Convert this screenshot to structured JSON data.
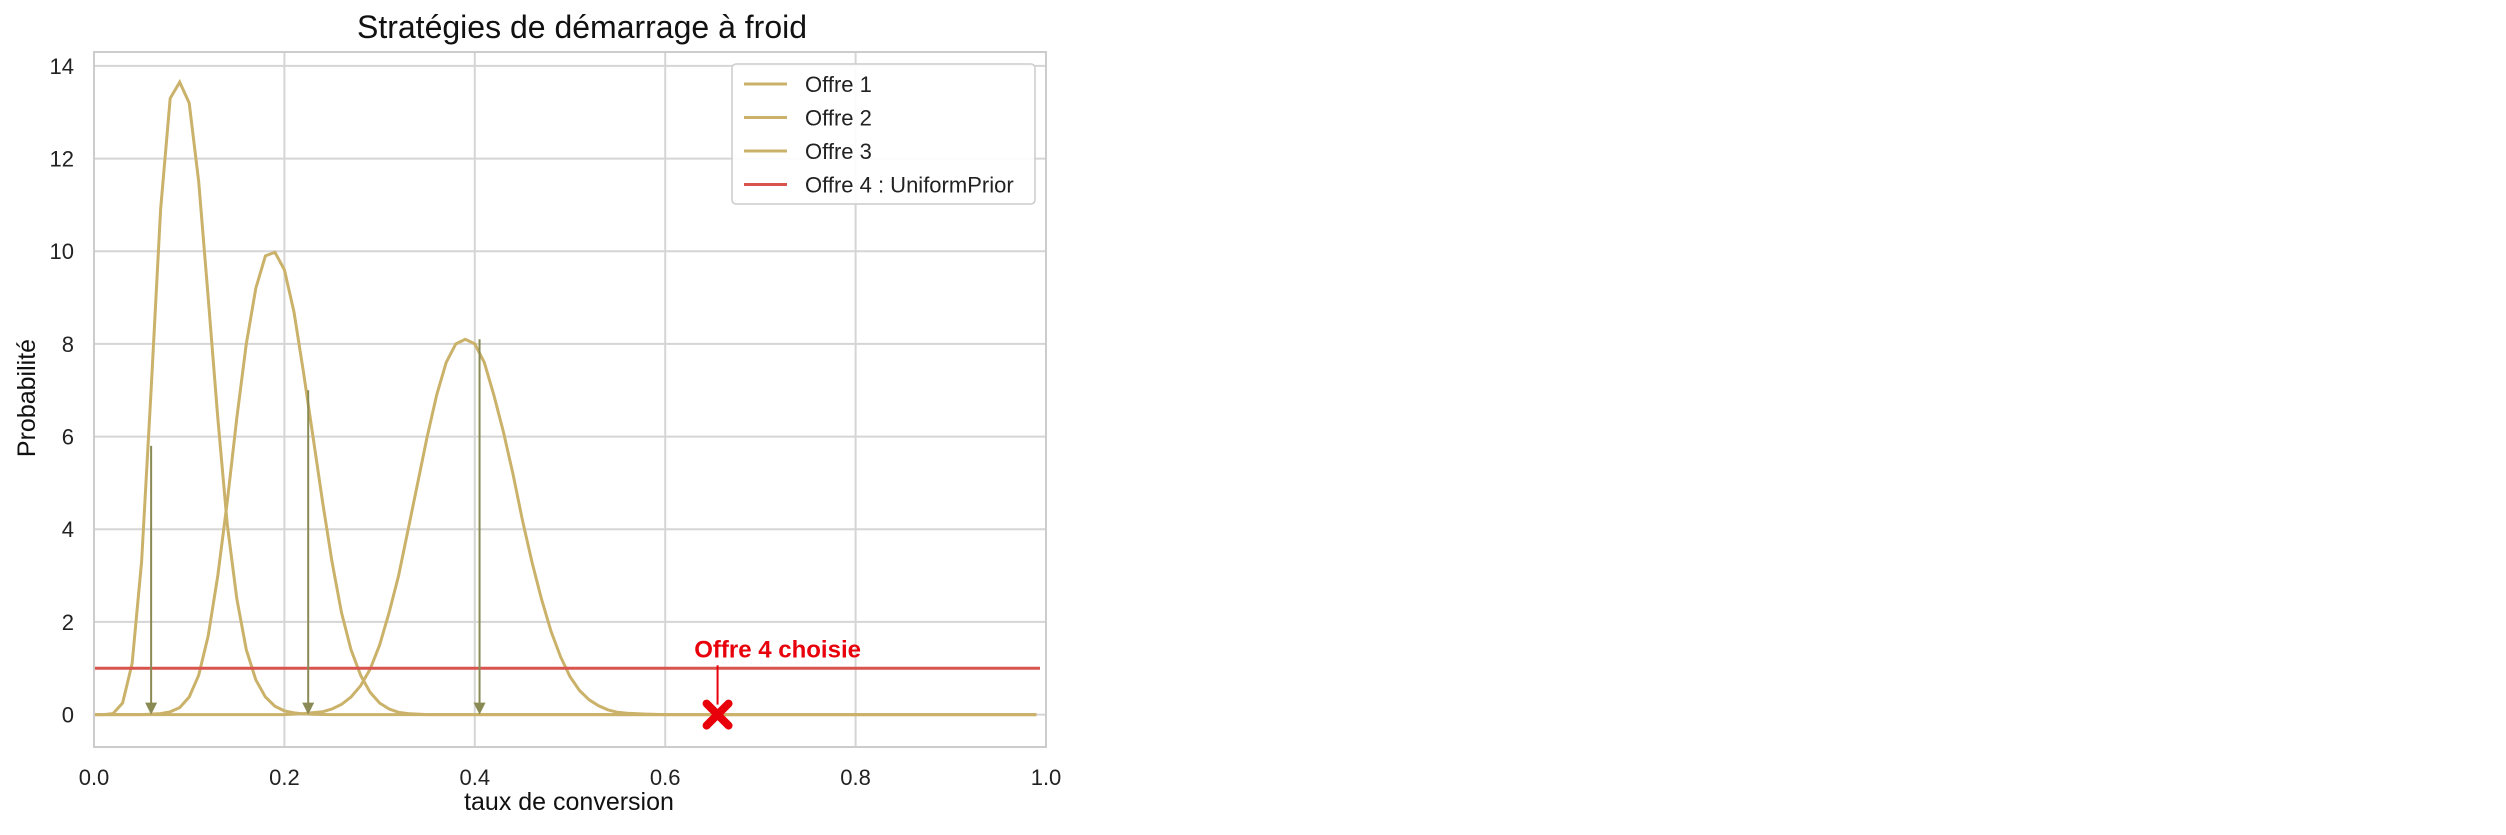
{
  "chart_data": {
    "type": "line",
    "title": "Stratégies de démarrage à froid",
    "xlabel": "taux de conversion",
    "ylabel": "Probabilité",
    "xlim": [
      0.0,
      1.0
    ],
    "ylim": [
      -0.7,
      14.3
    ],
    "xticks": [
      0.0,
      0.2,
      0.4,
      0.6,
      0.8,
      1.0
    ],
    "xtick_labels": [
      "0.0",
      "0.2",
      "0.4",
      "0.6",
      "0.8",
      "1.0"
    ],
    "yticks": [
      0,
      2,
      4,
      6,
      8,
      10,
      12,
      14
    ],
    "ytick_labels": [
      "0",
      "2",
      "4",
      "6",
      "8",
      "10",
      "12",
      "14"
    ],
    "grid": true,
    "legend_position": "top-right",
    "series": [
      {
        "name": "Offre 1",
        "color": "#cbb26a",
        "x": [
          0.0,
          0.01,
          0.02,
          0.03,
          0.04,
          0.05,
          0.06,
          0.07,
          0.08,
          0.09,
          0.1,
          0.11,
          0.12,
          0.13,
          0.14,
          0.15,
          0.16,
          0.17,
          0.18,
          0.19,
          0.2,
          0.21,
          0.22,
          0.23,
          0.24,
          0.25,
          0.26,
          0.28,
          0.3,
          0.4,
          0.6,
          0.8,
          0.99
        ],
        "y": [
          0.0,
          0.0,
          0.02,
          0.25,
          1.1,
          3.3,
          7.0,
          10.9,
          13.3,
          13.65,
          13.2,
          11.5,
          9.0,
          6.4,
          4.1,
          2.5,
          1.4,
          0.75,
          0.38,
          0.18,
          0.08,
          0.035,
          0.015,
          0.005,
          0.002,
          0.0,
          0.0,
          0.0,
          0.0,
          0.0,
          0.0,
          0.0,
          0.0
        ]
      },
      {
        "name": "Offre 2",
        "color": "#cbb26a",
        "x": [
          0.0,
          0.05,
          0.07,
          0.08,
          0.09,
          0.1,
          0.11,
          0.12,
          0.13,
          0.14,
          0.15,
          0.16,
          0.17,
          0.18,
          0.19,
          0.2,
          0.21,
          0.22,
          0.23,
          0.24,
          0.25,
          0.26,
          0.27,
          0.28,
          0.29,
          0.3,
          0.31,
          0.32,
          0.33,
          0.35,
          0.4,
          0.6,
          0.8,
          0.99
        ],
        "y": [
          0.0,
          0.0,
          0.02,
          0.06,
          0.15,
          0.38,
          0.85,
          1.7,
          3.0,
          4.6,
          6.4,
          8.0,
          9.2,
          9.9,
          9.98,
          9.6,
          8.7,
          7.4,
          6.0,
          4.6,
          3.3,
          2.2,
          1.4,
          0.85,
          0.48,
          0.25,
          0.12,
          0.05,
          0.02,
          0.0,
          0.0,
          0.0,
          0.0,
          0.0
        ]
      },
      {
        "name": "Offre 3",
        "color": "#cbb26a",
        "x": [
          0.0,
          0.15,
          0.2,
          0.22,
          0.24,
          0.25,
          0.26,
          0.27,
          0.28,
          0.29,
          0.3,
          0.31,
          0.32,
          0.33,
          0.34,
          0.35,
          0.36,
          0.37,
          0.38,
          0.39,
          0.4,
          0.41,
          0.42,
          0.43,
          0.44,
          0.45,
          0.46,
          0.47,
          0.48,
          0.49,
          0.5,
          0.51,
          0.52,
          0.53,
          0.54,
          0.55,
          0.56,
          0.58,
          0.6,
          0.65,
          0.8,
          0.99
        ],
        "y": [
          0.0,
          0.0,
          0.0,
          0.02,
          0.06,
          0.12,
          0.22,
          0.38,
          0.62,
          0.98,
          1.5,
          2.2,
          3.0,
          4.0,
          5.0,
          6.0,
          6.9,
          7.6,
          8.0,
          8.1,
          8.0,
          7.6,
          6.9,
          6.1,
          5.2,
          4.2,
          3.3,
          2.5,
          1.8,
          1.25,
          0.82,
          0.52,
          0.32,
          0.19,
          0.1,
          0.05,
          0.03,
          0.01,
          0.0,
          0.0,
          0.0,
          0.0
        ]
      },
      {
        "name": "Offre 4 : UniformPrior",
        "color": "#d9534f",
        "x": [
          0.0,
          0.99
        ],
        "y": [
          1.0,
          1.0
        ]
      }
    ],
    "arrows": [
      {
        "x": 0.06,
        "y_from": 5.8,
        "y_to": 0.0,
        "color": "#8a8a55"
      },
      {
        "x": 0.225,
        "y_from": 7.0,
        "y_to": 0.0,
        "color": "#8a8a55"
      },
      {
        "x": 0.405,
        "y_from": 8.1,
        "y_to": 0.0,
        "color": "#8a8a55"
      }
    ],
    "annotation": {
      "text": "Offre 4 choisie",
      "color": "#e8000b",
      "text_x": 0.62,
      "text_y": 1.15,
      "marker_x": 0.655,
      "marker_y": 0.0,
      "marker": "x"
    }
  }
}
